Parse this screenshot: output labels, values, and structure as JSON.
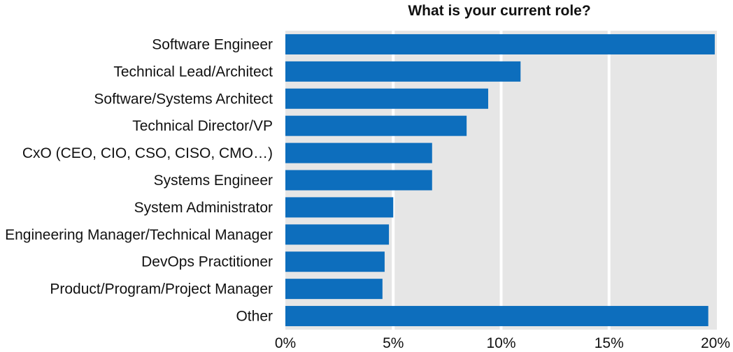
{
  "chart_data": {
    "type": "bar",
    "orientation": "horizontal",
    "title": "What is your current role?",
    "categories": [
      "Software Engineer",
      "Technical Lead/Architect",
      "Software/Systems Architect",
      "Technical Director/VP",
      "CxO (CEO, CIO, CSO, CISO, CMO…)",
      "Systems Engineer",
      "System Administrator",
      "Engineering Manager/Technical Manager",
      "DevOps Practitioner",
      "Product/Program/Project Manager",
      "Other"
    ],
    "values": [
      19.9,
      10.9,
      9.4,
      8.4,
      6.8,
      6.8,
      5.0,
      4.8,
      4.6,
      4.5,
      19.6
    ],
    "xlim": [
      0,
      20
    ],
    "xticks": [
      0,
      5,
      10,
      15,
      20
    ],
    "xtick_labels": [
      "0%",
      "5%",
      "10%",
      "15%",
      "20%"
    ],
    "xlabel": "",
    "ylabel": "",
    "grid": "vertical",
    "bar_color": "#0d6ebd",
    "plot_background": "#e6e6e6",
    "gridline_color": "#ffffff"
  }
}
